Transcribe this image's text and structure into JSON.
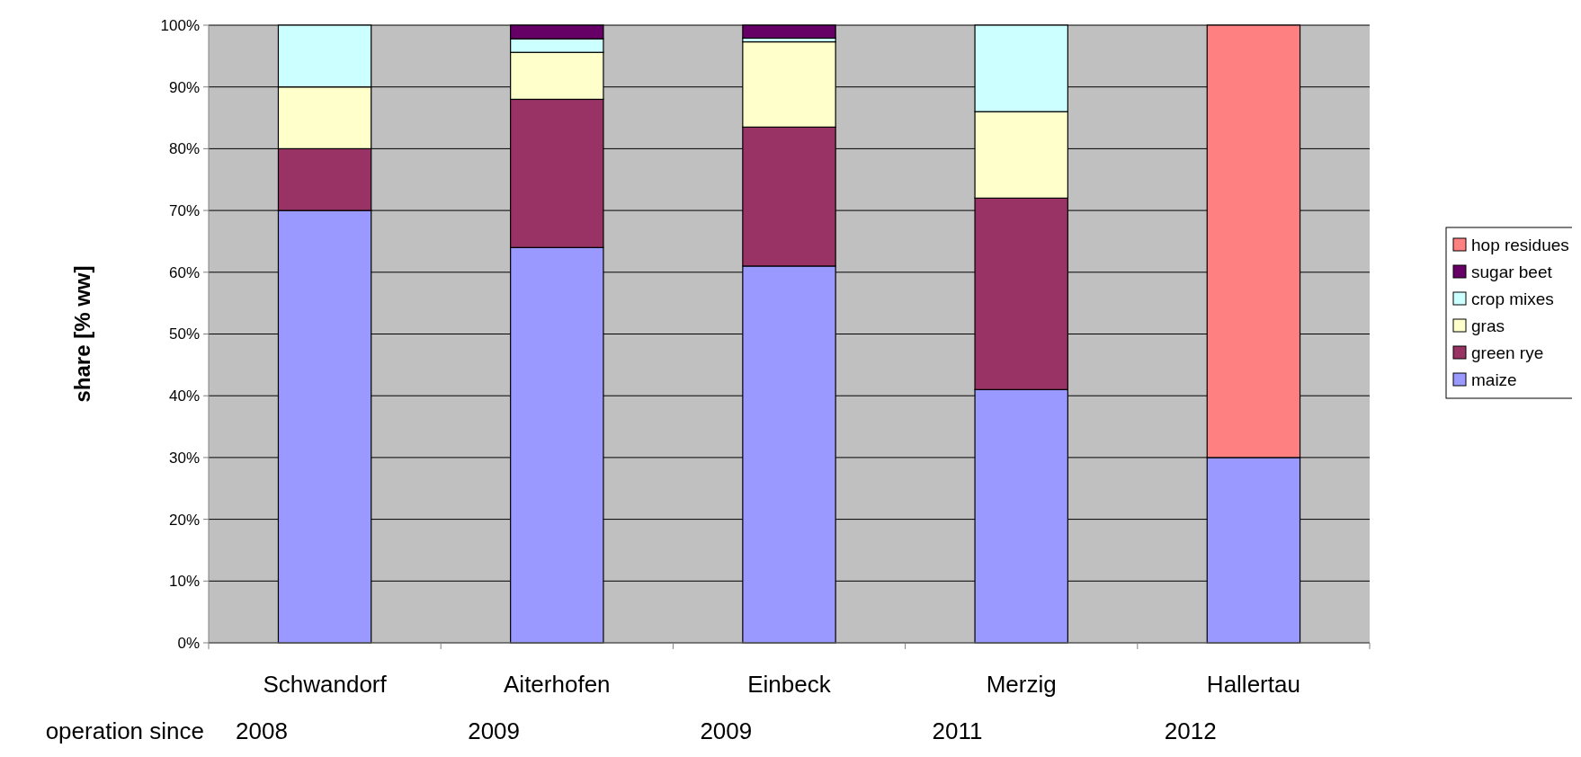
{
  "chart_data": {
    "type": "bar",
    "stacked": true,
    "ylabel": "share [% ww]",
    "categories": [
      "Schwandorf",
      "Aiterhofen",
      "Einbeck",
      "Merzig",
      "Hallertau"
    ],
    "series": [
      {
        "name": "maize",
        "color": "#9999ff",
        "values": [
          70,
          64,
          61,
          41,
          30
        ]
      },
      {
        "name": "green rye",
        "color": "#993366",
        "values": [
          10,
          24,
          22.5,
          31,
          0
        ]
      },
      {
        "name": "gras",
        "color": "#ffffcc",
        "values": [
          10,
          7.6,
          13.8,
          14,
          0
        ]
      },
      {
        "name": "crop mixes",
        "color": "#ccffff",
        "values": [
          10,
          2.2,
          0.6,
          14,
          0
        ]
      },
      {
        "name": "sugar beet",
        "color": "#660066",
        "values": [
          0,
          2.2,
          2.1,
          0,
          0
        ]
      },
      {
        "name": "hop residues",
        "color": "#ff8080",
        "values": [
          0,
          0,
          0,
          0,
          70
        ]
      }
    ],
    "ylim": [
      0,
      100
    ],
    "yticks": [
      {
        "value": 0,
        "label": "0%"
      },
      {
        "value": 10,
        "label": "10%"
      },
      {
        "value": 20,
        "label": "20%"
      },
      {
        "value": 30,
        "label": "30%"
      },
      {
        "value": 40,
        "label": "40%"
      },
      {
        "value": 50,
        "label": "50%"
      },
      {
        "value": 60,
        "label": "60%"
      },
      {
        "value": 70,
        "label": "70%"
      },
      {
        "value": 80,
        "label": "80%"
      },
      {
        "value": 90,
        "label": "90%"
      },
      {
        "value": 100,
        "label": "100%"
      }
    ],
    "grid": "y",
    "legend": "right",
    "annotations": [
      "operation since",
      "2008",
      "2009",
      "2009",
      "2011",
      "2012"
    ]
  }
}
